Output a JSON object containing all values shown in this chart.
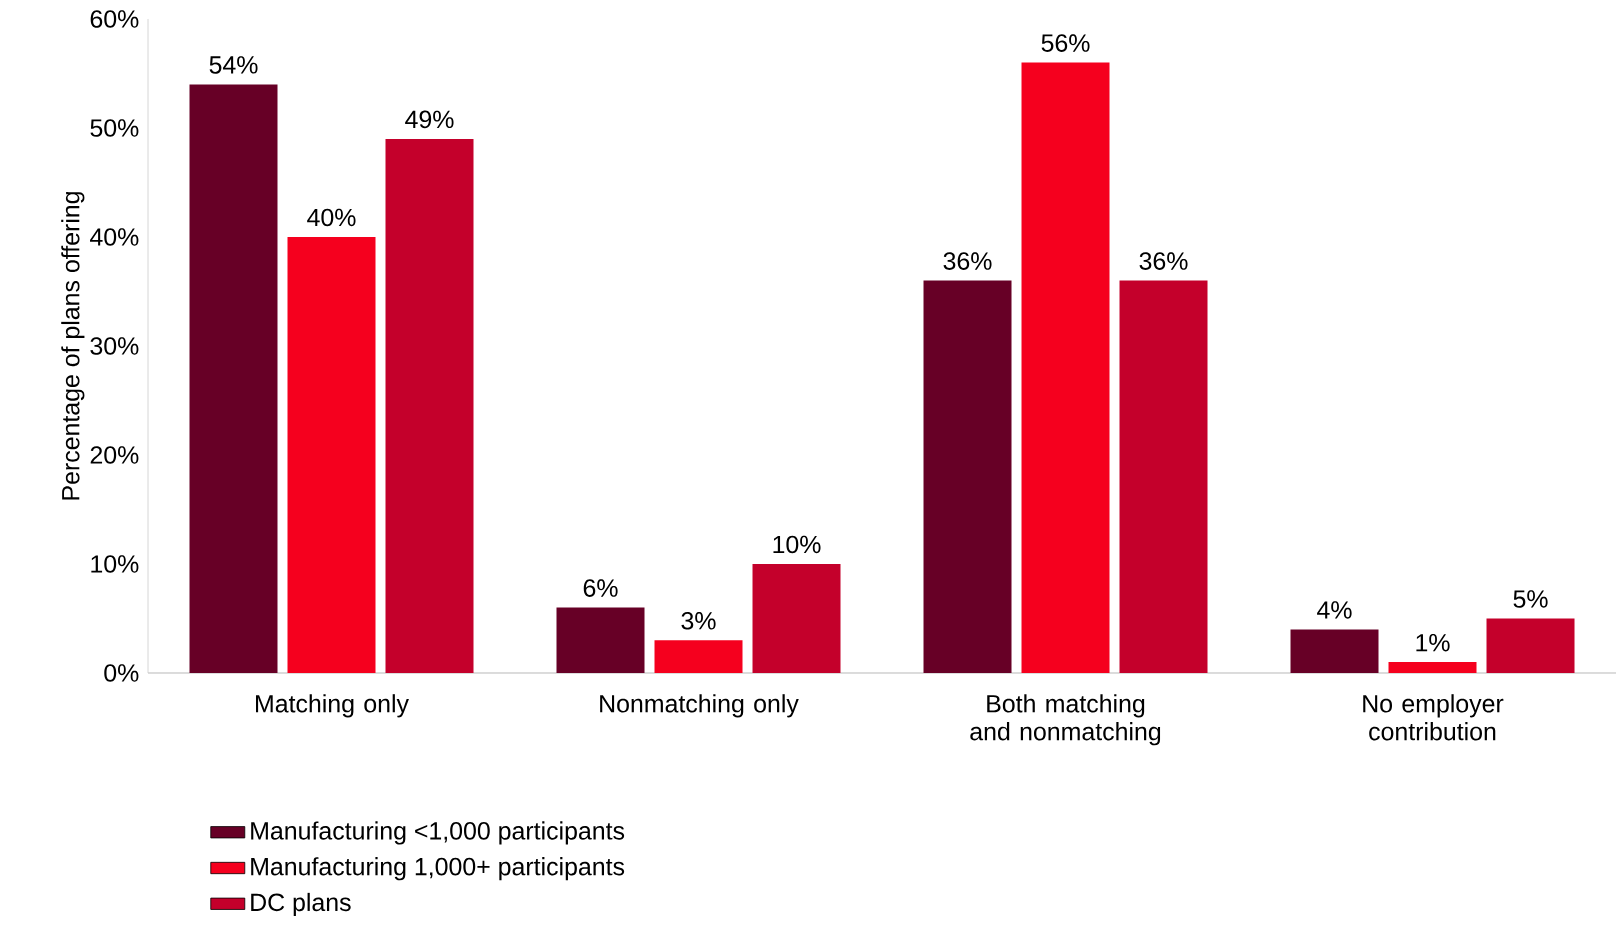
{
  "chart_data": {
    "type": "bar",
    "ylabel": "Percentage of plans offering",
    "categories": [
      "Matching only",
      "Nonmatching only",
      "Both matching and nonmatching",
      "No employer contribution"
    ],
    "series": [
      {
        "name": "Manufacturing <1,000 participants",
        "color": "#670026",
        "values": [
          54,
          6,
          36,
          4
        ],
        "value_labels": [
          "54%",
          "6%",
          "36%",
          "4%"
        ]
      },
      {
        "name": "Manufacturing 1,000+ participants",
        "color": "#f5001e",
        "values": [
          40,
          3,
          56,
          1
        ],
        "value_labels": [
          "40%",
          "3%",
          "56%",
          "1%"
        ]
      },
      {
        "name": "DC plans",
        "color": "#c4002b",
        "values": [
          49,
          10,
          36,
          5
        ],
        "value_labels": [
          "49%",
          "10%",
          "36%",
          "5%"
        ]
      }
    ],
    "ylim": [
      0,
      60
    ],
    "yticks": [
      {
        "value": 0,
        "label": "0%"
      },
      {
        "value": 10,
        "label": "10%"
      },
      {
        "value": 20,
        "label": "20%"
      },
      {
        "value": 30,
        "label": "30%"
      },
      {
        "value": 40,
        "label": "40%"
      },
      {
        "value": 50,
        "label": "50%"
      },
      {
        "value": 60,
        "label": "60%"
      }
    ],
    "grid": false,
    "legend": "bottom left"
  }
}
